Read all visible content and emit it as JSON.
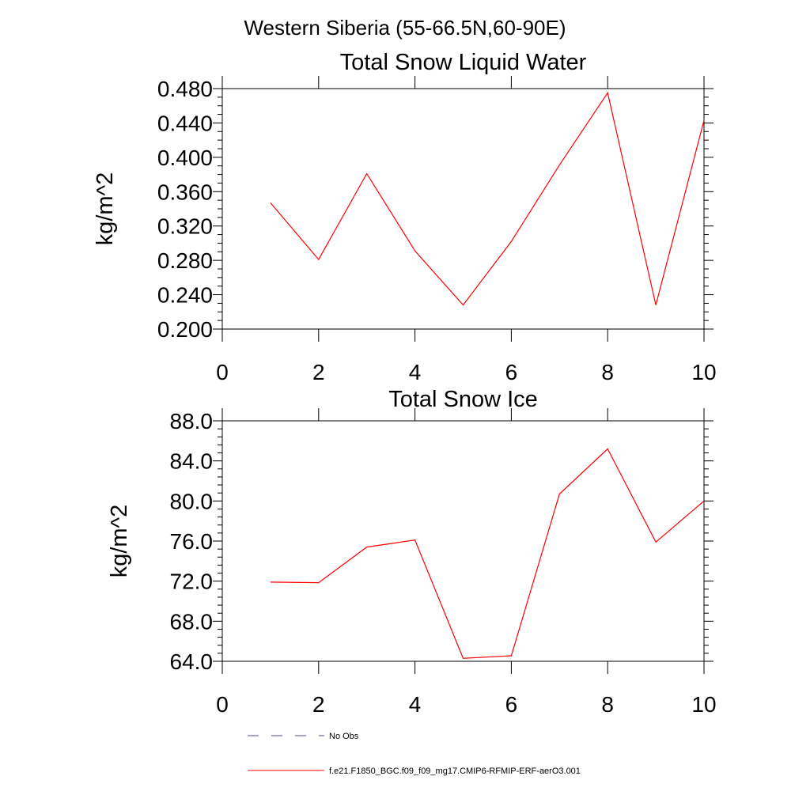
{
  "figure": {
    "title": "Western Siberia (55-66.5N,60-90E)"
  },
  "chart_data": [
    {
      "type": "line",
      "title": "Total Snow Liquid Water",
      "xlabel": "",
      "ylabel": "kg/m^2",
      "xlim": [
        0,
        10
      ],
      "ylim": [
        0.2,
        0.48
      ],
      "xticks": [
        "0",
        "2",
        "4",
        "6",
        "8",
        "10"
      ],
      "yticks": [
        "0.200",
        "0.240",
        "0.280",
        "0.320",
        "0.360",
        "0.400",
        "0.440",
        "0.480"
      ],
      "x": [
        1,
        2,
        3,
        4,
        5,
        6,
        7,
        8,
        9,
        10
      ],
      "series": [
        {
          "name": "f.e21.F1850_BGC.f09_f09_mg17.CMIP6-RFMIP-ERF-aerO3.001",
          "color": "#ff0000",
          "values": [
            0.347,
            0.281,
            0.381,
            0.291,
            0.228,
            0.302,
            0.391,
            0.475,
            0.228,
            0.443
          ]
        }
      ],
      "grid": false
    },
    {
      "type": "line",
      "title": "Total Snow Ice",
      "xlabel": "",
      "ylabel": "kg/m^2",
      "xlim": [
        0,
        10
      ],
      "ylim": [
        64,
        88
      ],
      "xticks": [
        "0",
        "2",
        "4",
        "6",
        "8",
        "10"
      ],
      "yticks": [
        "64.0",
        "68.0",
        "72.0",
        "76.0",
        "80.0",
        "84.0",
        "88.0"
      ],
      "x": [
        1,
        2,
        3,
        4,
        5,
        6,
        7,
        8,
        9,
        10
      ],
      "series": [
        {
          "name": "f.e21.F1850_BGC.f09_f09_mg17.CMIP6-RFMIP-ERF-aerO3.001",
          "color": "#ff0000",
          "values": [
            71.9,
            71.85,
            75.4,
            76.1,
            64.3,
            64.55,
            80.7,
            85.2,
            75.9,
            80.0
          ]
        }
      ],
      "grid": false
    }
  ],
  "legend": {
    "placement": "bottom",
    "items": [
      {
        "label": "No Obs",
        "color": "#44448a",
        "style": "dashed"
      },
      {
        "label": "f.e21.F1850_BGC.f09_f09_mg17.CMIP6-RFMIP-ERF-aerO3.001",
        "color": "#ff0000",
        "style": "solid"
      }
    ]
  }
}
